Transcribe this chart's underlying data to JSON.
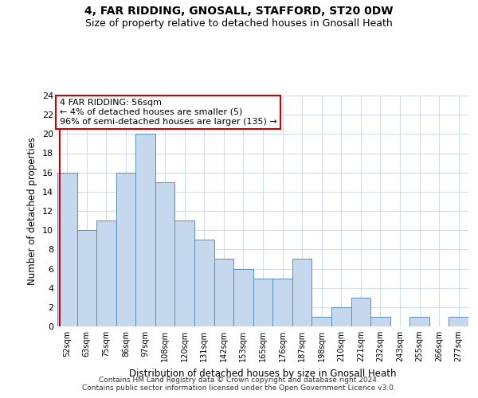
{
  "title1": "4, FAR RIDDING, GNOSALL, STAFFORD, ST20 0DW",
  "title2": "Size of property relative to detached houses in Gnosall Heath",
  "xlabel": "Distribution of detached houses by size in Gnosall Heath",
  "ylabel": "Number of detached properties",
  "categories": [
    "52sqm",
    "63sqm",
    "75sqm",
    "86sqm",
    "97sqm",
    "108sqm",
    "120sqm",
    "131sqm",
    "142sqm",
    "153sqm",
    "165sqm",
    "176sqm",
    "187sqm",
    "198sqm",
    "210sqm",
    "221sqm",
    "232sqm",
    "243sqm",
    "255sqm",
    "266sqm",
    "277sqm"
  ],
  "values": [
    16,
    10,
    11,
    16,
    20,
    15,
    11,
    9,
    7,
    6,
    5,
    5,
    7,
    1,
    2,
    3,
    1,
    0,
    1,
    0,
    1
  ],
  "bar_color": "#c5d8ed",
  "bar_edge_color": "#5a8fc2",
  "grid_color": "#d0dce8",
  "annotation_text": "4 FAR RIDDING: 56sqm\n← 4% of detached houses are smaller (5)\n96% of semi-detached houses are larger (135) →",
  "annotation_box_color": "#ffffff",
  "annotation_box_edge_color": "#cc0000",
  "property_line_color": "#cc0000",
  "ylim": [
    0,
    24
  ],
  "yticks": [
    0,
    2,
    4,
    6,
    8,
    10,
    12,
    14,
    16,
    18,
    20,
    22,
    24
  ],
  "footnote1": "Contains HM Land Registry data © Crown copyright and database right 2024.",
  "footnote2": "Contains public sector information licensed under the Open Government Licence v3.0.",
  "title1_fontsize": 10,
  "title2_fontsize": 9,
  "xlabel_fontsize": 8.5,
  "ylabel_fontsize": 8.5,
  "annotation_fontsize": 8,
  "footnote_fontsize": 6.5
}
